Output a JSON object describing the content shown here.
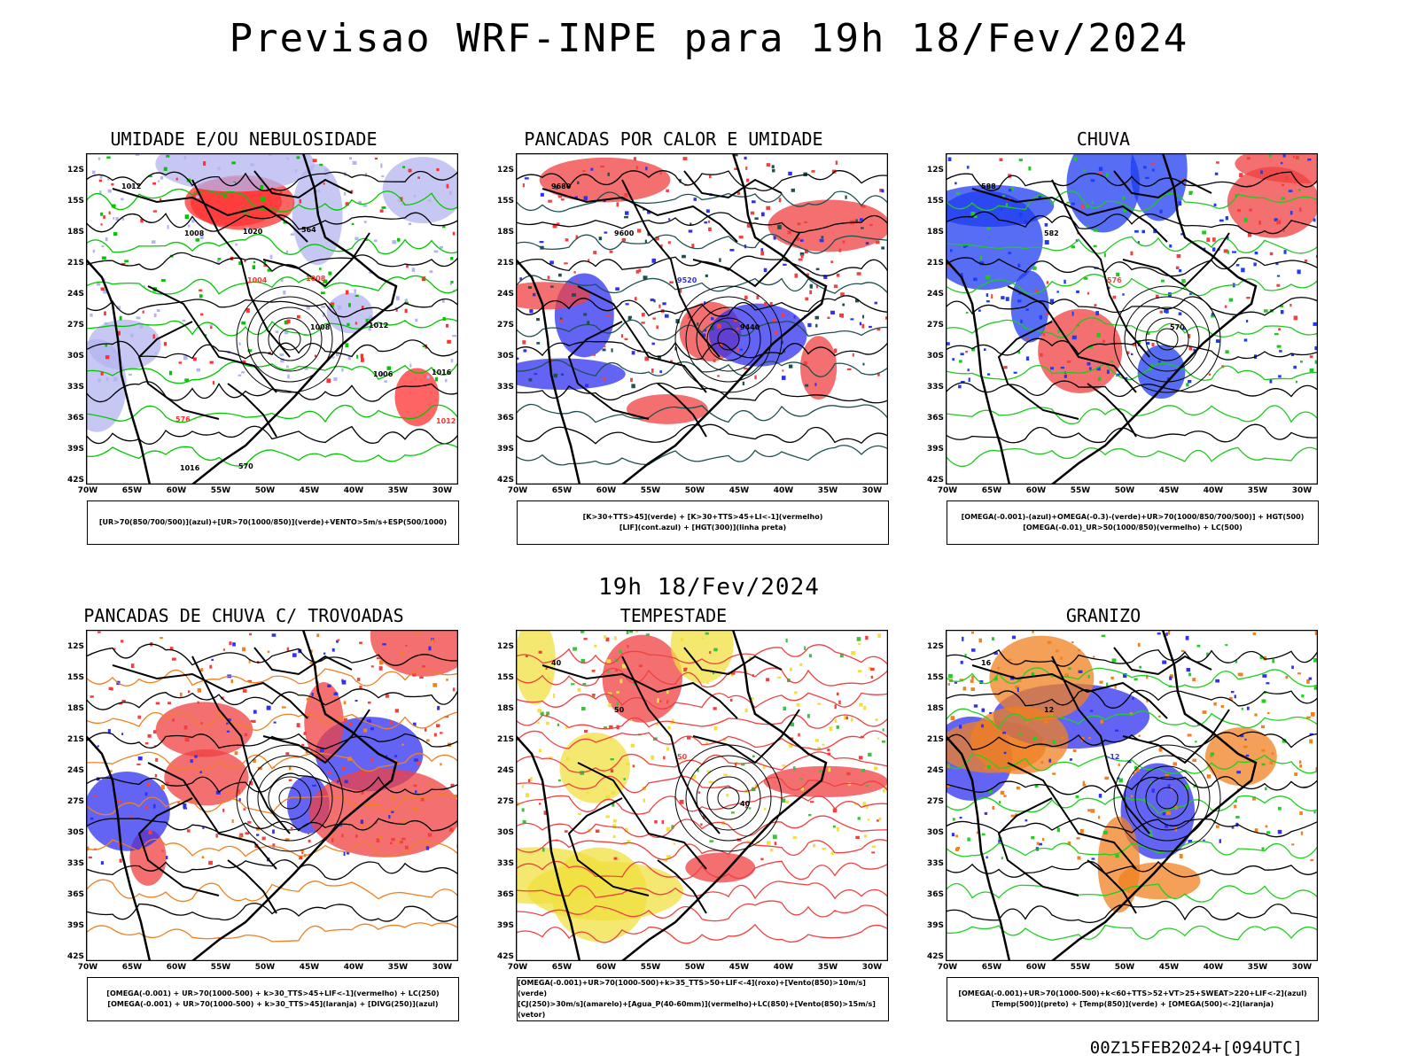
{
  "page": {
    "title": "Previsao WRF-INPE  para 19h 18/Fev/2024",
    "middle_title": "19h 18/Fev/2024",
    "footer": "00Z15FEB2024+[094UTC]"
  },
  "axes": {
    "lat_labels": [
      "12S",
      "15S",
      "18S",
      "21S",
      "24S",
      "27S",
      "30S",
      "33S",
      "36S",
      "39S",
      "42S"
    ],
    "lon_labels": [
      "70W",
      "65W",
      "60W",
      "55W",
      "50W",
      "45W",
      "40W",
      "35W",
      "30W"
    ]
  },
  "panels": [
    {
      "title": "UMIDADE E/OU NEBULOSIDADE",
      "legend": [
        "[UR>70(850/700/500)](azul)+[UR>70(1000/850)](verde)+VENTO>5m/s+ESP(500/1000)"
      ],
      "labels": [
        "1012",
        "1008",
        "1004",
        "1008",
        "1006",
        "1012",
        "1016",
        "1020",
        "1008",
        "1012",
        "1016",
        "576",
        "570",
        "564"
      ],
      "colors": {
        "fill": "#b4b4f0",
        "primary": "#00c800",
        "secondary": "#ff3030",
        "line": "#000000"
      }
    },
    {
      "title": "PANCADAS POR CALOR E UMIDADE",
      "legend": [
        "[K>30+TTS>45](verde) + [K>30+TTS>45+LI<-1](vermelho)",
        "[LIF](cont.azul) + [HGT(300)](linha preta)"
      ],
      "labels": [
        "9680",
        "9600",
        "9520",
        "9440"
      ],
      "colors": {
        "fill": "#f04040",
        "primary": "#1e5050",
        "secondary": "#3030f0",
        "line": "#000000"
      }
    },
    {
      "title": "CHUVA",
      "legend": [
        "[OMEGA(-0.001)-(azul)+OMEGA(-0.3)-(verde)+UR>70(1000/850/700/500)] + HGT(500)",
        "[OMEGA(-0.01)_UR>50(1000/850)(vermelho) + LC(500)"
      ],
      "labels": [
        "588",
        "582",
        "576",
        "570"
      ],
      "colors": {
        "fill": "#1e3cf0",
        "primary": "#20c820",
        "secondary": "#f04040",
        "line": "#000000"
      }
    },
    {
      "title": "PANCADAS DE CHUVA C/ TROVOADAS",
      "legend": [
        "[OMEGA(-0.001) + UR>70(1000-500) + k>30_TTS>45+LIF<-1](vermelho) + LC(250)",
        "[OMEGA(-0.001) + UR>70(1000-500) + k>30_TTS>45](laranja) + [DIVG(250)](azul)"
      ],
      "labels": [],
      "colors": {
        "fill": "#f04040",
        "primary": "#f08020",
        "secondary": "#3030f0",
        "line": "#000000"
      }
    },
    {
      "title": "TEMPESTADE",
      "legend": [
        "[OMEGA(-0.001)+UR>70(1000-500)+k>35_TTS>50+LIF<-4](roxo)+[Vento(850)>10m/s](verde)",
        "[CJ(250)>30m/s](amarelo)+[Agua_P(40-60mm)](vermelho)+LC(850)+[Vento(850)>15m/s](vetor)"
      ],
      "labels": [
        "40",
        "50",
        "50",
        "40"
      ],
      "colors": {
        "fill": "#f0e040",
        "primary": "#40c040",
        "secondary": "#f04040",
        "line": "#000000"
      }
    },
    {
      "title": "GRANIZO",
      "legend": [
        "[OMEGA(-0.001)+UR>70(1000-500)+k<60+TTS>52+VT>25+SWEAT>220+LIF<-2](azul)",
        "[Temp(500)](preto) + [Temp(850)](verde) + [OMEGA(500)<-2](laranja)"
      ],
      "labels": [
        "16",
        "12",
        "-12"
      ],
      "colors": {
        "fill": "#f08020",
        "primary": "#20d020",
        "secondary": "#3030f0",
        "line": "#000000"
      }
    }
  ]
}
